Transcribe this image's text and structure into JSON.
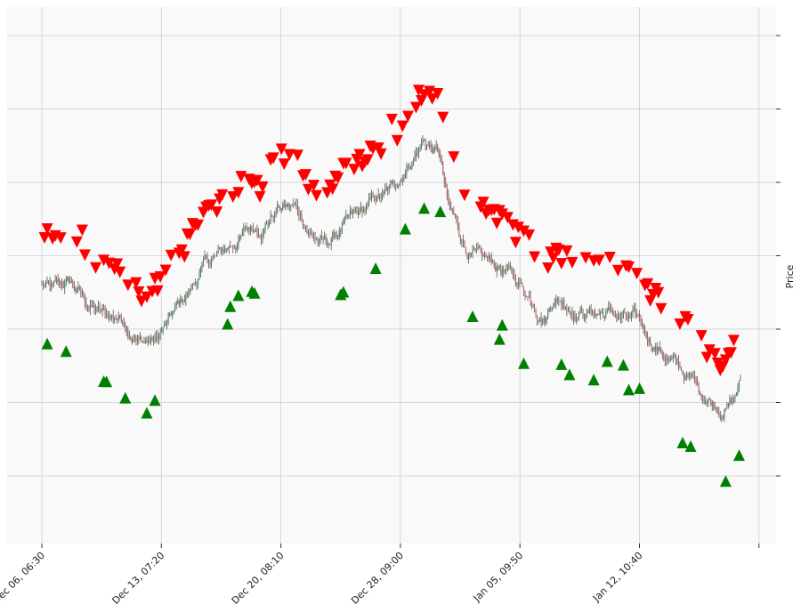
{
  "chart_data": {
    "type": "candlestick",
    "title": "",
    "xlabel": "",
    "ylabel": "Price",
    "y_axis_side": "right",
    "y_ticks_labeled": false,
    "grid": true,
    "background_color": "#f9f9f9",
    "grid_color": "#cccccc",
    "x_tick_labels": [
      "Dec 06, 06:30",
      "Dec 13, 07:20",
      "Dec 20, 08:10",
      "Dec 28, 09:00",
      "Jan 05, 09:50",
      "Jan 12, 10:40"
    ],
    "price_series": {
      "name": "",
      "color_up": "#2e8b57",
      "color_down": "#d9534f",
      "wick_color": "#555555",
      "anchors": [
        [
          0,
          0.66
        ],
        [
          1.5,
          0.62
        ],
        [
          3.5,
          0.66
        ],
        [
          6,
          0.53
        ],
        [
          8,
          0.47
        ],
        [
          10,
          0.48
        ],
        [
          12,
          0.36
        ],
        [
          14,
          0.34
        ],
        [
          17,
          0.53
        ],
        [
          20,
          0.77
        ],
        [
          22,
          0.83
        ],
        [
          25,
          0.97
        ],
        [
          27,
          1.02
        ],
        [
          29,
          1.13
        ],
        [
          31,
          1.12
        ],
        [
          33,
          0.98
        ],
        [
          35,
          0.89
        ],
        [
          37,
          1.0
        ],
        [
          39,
          1.04
        ],
        [
          41,
          1.14
        ],
        [
          43,
          1.19
        ],
        [
          45,
          1.38
        ],
        [
          47,
          1.52
        ],
        [
          49,
          1.42
        ],
        [
          50,
          1.1
        ],
        [
          52,
          0.9
        ],
        [
          54,
          0.78
        ],
        [
          57,
          0.74
        ],
        [
          60,
          0.61
        ],
        [
          62,
          0.51
        ],
        [
          63,
          0.63
        ],
        [
          65,
          0.57
        ],
        [
          67,
          0.53
        ],
        [
          70,
          0.5
        ],
        [
          73,
          0.43
        ],
        [
          75,
          0.34
        ],
        [
          77,
          0.25
        ],
        [
          79,
          0.14
        ],
        [
          81,
          0.05
        ],
        [
          83,
          -0.02
        ],
        [
          85,
          0.0
        ],
        [
          86,
          0.1
        ]
      ]
    },
    "sell_markers": {
      "name": "",
      "marker": "triangle-down",
      "color": "#ff0000",
      "offset_above": 0.3
    },
    "buy_markers": {
      "name": "",
      "marker": "triangle-up",
      "color": "#008000",
      "offset_below": 0.3
    }
  }
}
